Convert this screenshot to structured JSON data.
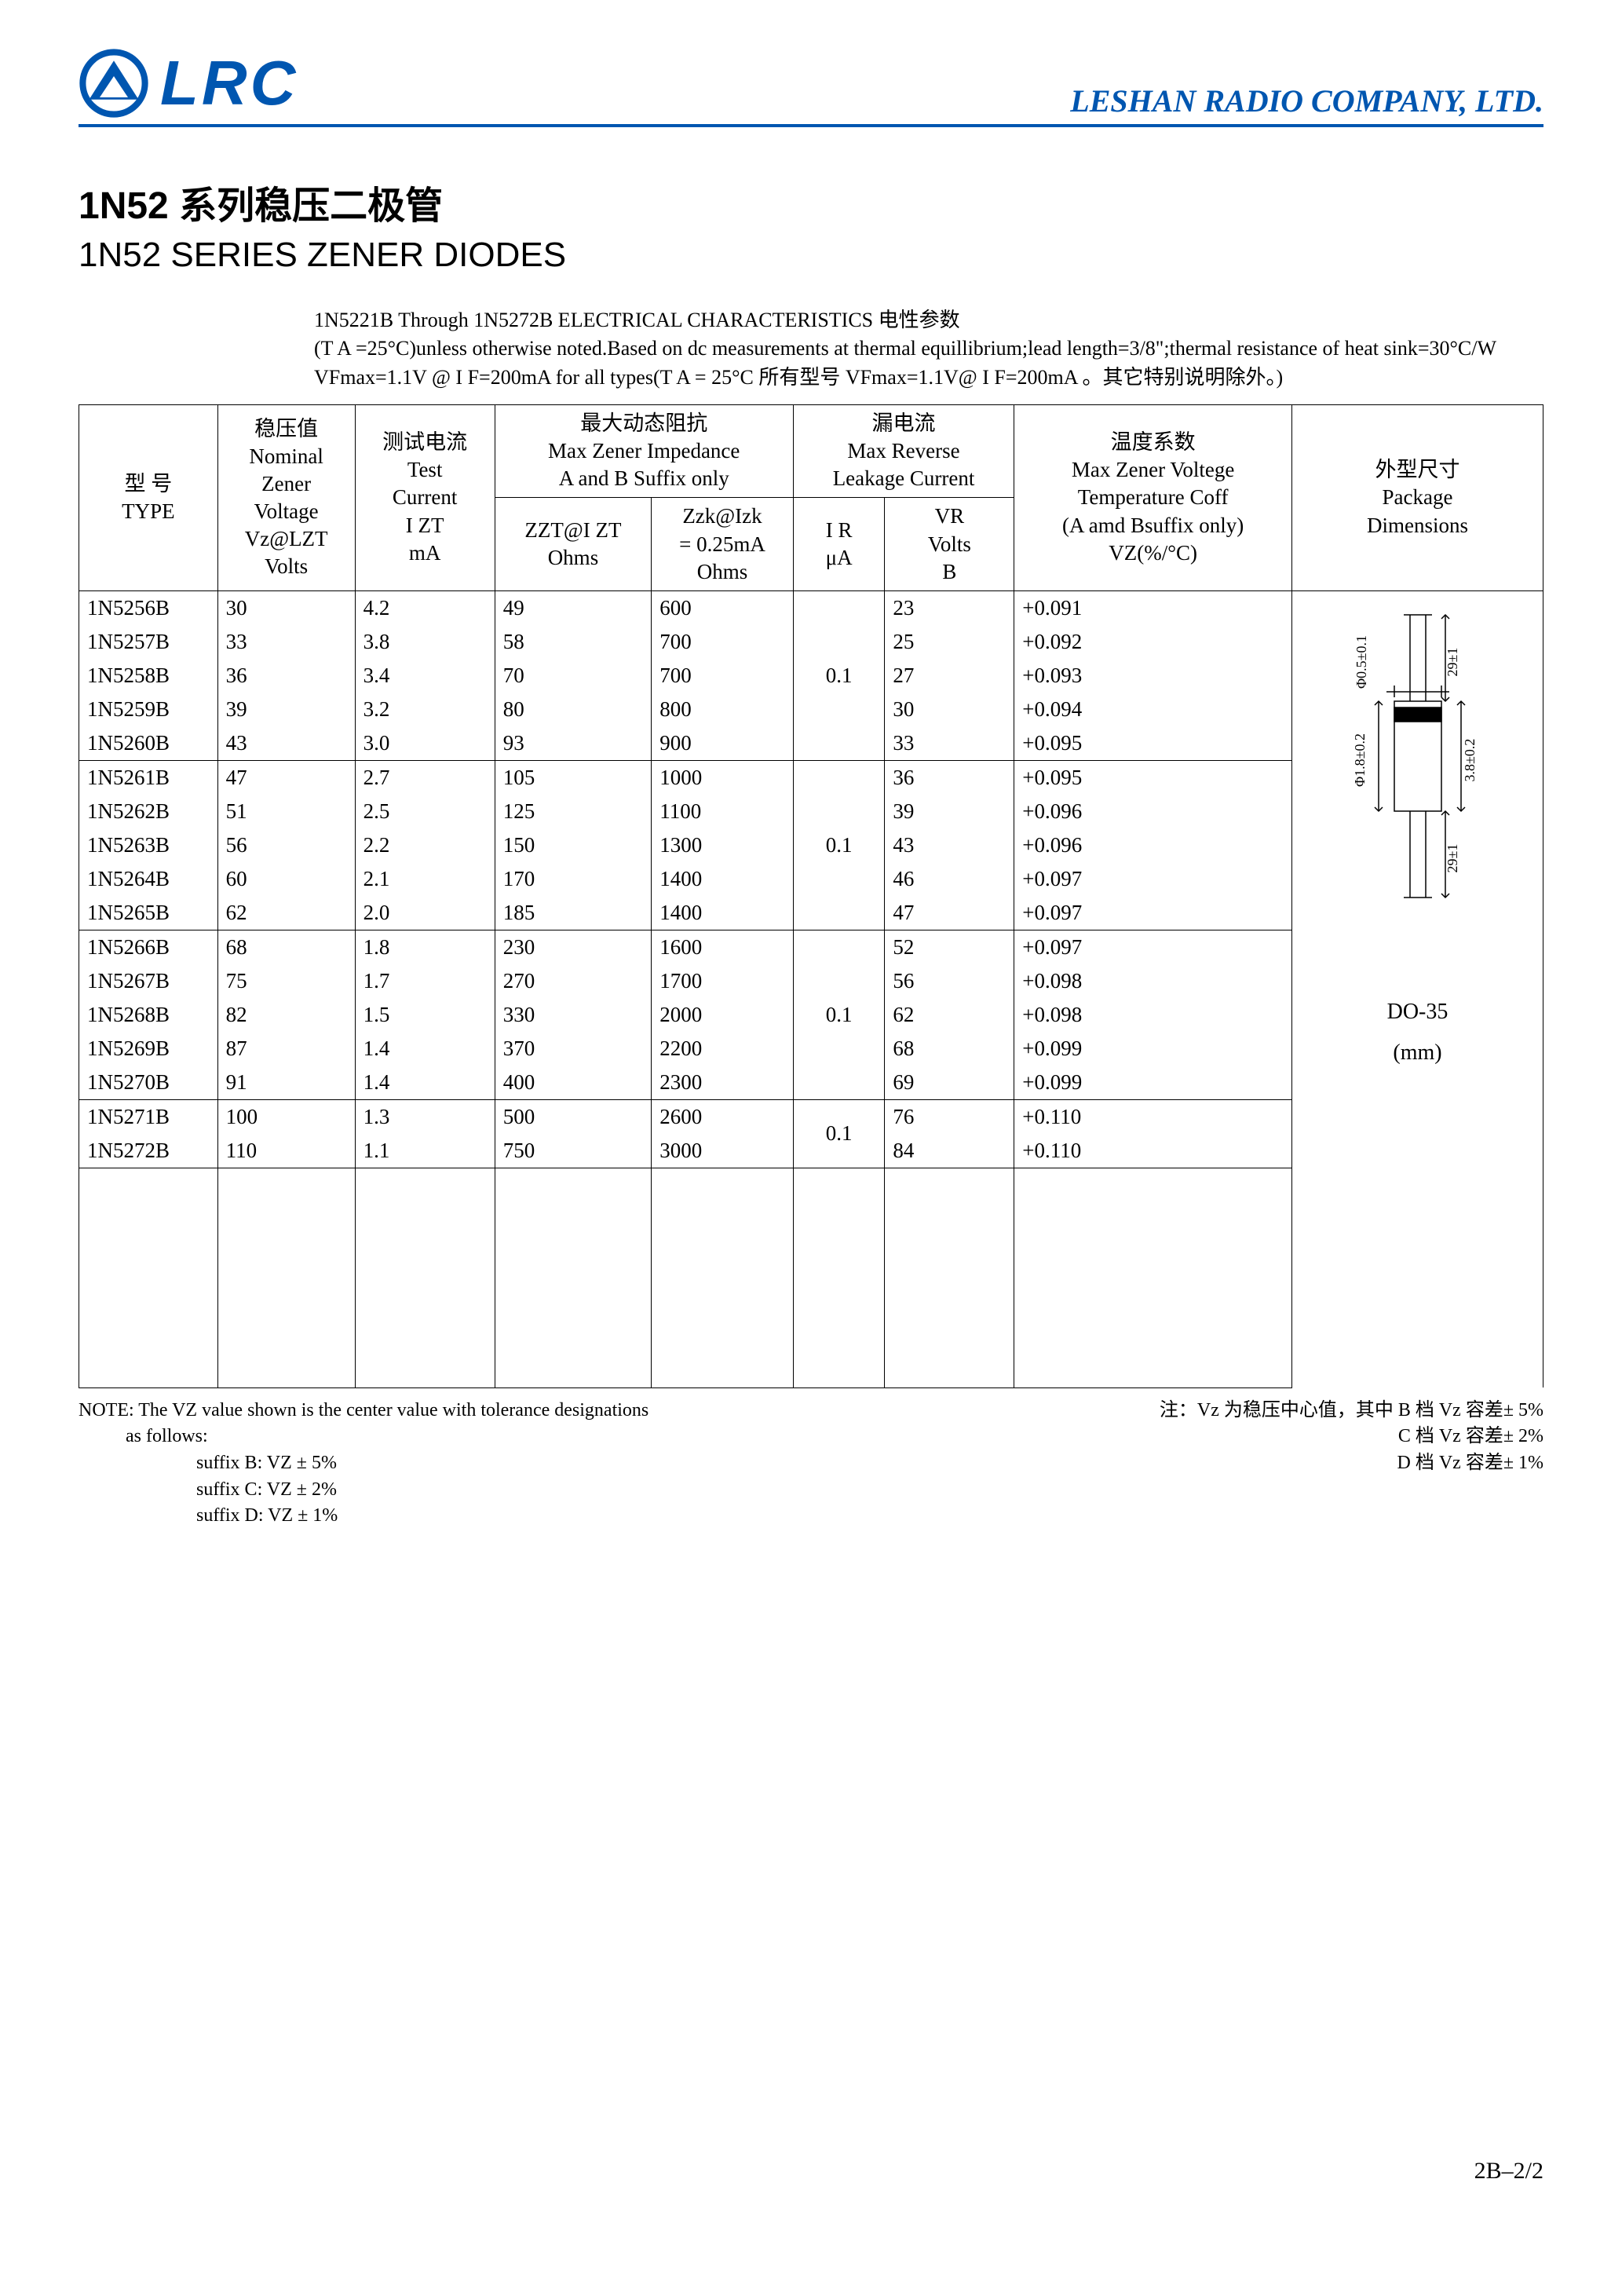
{
  "header": {
    "logo_text": "LRC",
    "company": "LESHAN RADIO COMPANY, LTD."
  },
  "titles": {
    "cn": "1N52 系列稳压二极管",
    "en": "1N52 SERIES ZENER DIODES"
  },
  "subtext_line1": "1N5221B Through 1N5272B ELECTRICAL CHARACTERISTICS 电性参数",
  "subtext_line2": "(T A =25°C)unless otherwise noted.Based on dc measurements at thermal equillibrium;lead length=3/8\";thermal resistance of heat sink=30°C/W  VFmax=1.1V @ I F=200mA for all types(T A = 25°C 所有型号 VFmax=1.1V@ I F=200mA 。其它特别说明除外。)",
  "table": {
    "head": {
      "type_cn": "型  号",
      "type_en": "TYPE",
      "vz_cn": "稳压值",
      "vz_en1": "Nominal",
      "vz_en2": "Zener",
      "vz_en3": "Voltage",
      "vz_sym": "Vz@LZT",
      "vz_unit": "Volts",
      "izt_cn": "测试电流",
      "izt_en1": "Test",
      "izt_en2": "Current",
      "izt_sym": "I ZT",
      "izt_unit": "mA",
      "imp_cn": "最大动态阻抗",
      "imp_en1": "Max Zener Impedance",
      "imp_en2": "A and B Suffix only",
      "zzt_sym": "ZZT@I ZT",
      "zzt_unit": "Ohms",
      "zzk_sym": "Zzk@Izk",
      "zzk_cond": "= 0.25mA",
      "zzk_unit": "Ohms",
      "leak_cn": "漏电流",
      "leak_en1": "Max Reverse",
      "leak_en2": "Leakage Current",
      "ir_sym": "I R",
      "ir_unit": "μA",
      "vr_sym": "VR",
      "vr_unit1": "Volts",
      "vr_unit2": "B",
      "tc_cn": "温度系数",
      "tc_en1": "Max Zener Voltege",
      "tc_en2": "Temperature Coff",
      "tc_en3": "(A amd Bsuffix only)",
      "tc_sym": "VZ(%/°C)",
      "pkg_cn": "外型尺寸",
      "pkg_en1": "Package",
      "pkg_en2": "Dimensions"
    },
    "package": {
      "name": "DO-35",
      "unit": "(mm)",
      "dim1": "Φ0.5±0.1",
      "dim2": "29±1",
      "dim3": "Φ1.8±0.2",
      "dim4": "3.8±0.2",
      "dim5": "29±1"
    },
    "groups": [
      {
        "ir": "0.1",
        "rows": [
          {
            "type": "1N5256B",
            "vz": "30",
            "izt": "4.2",
            "zzt": "49",
            "zzk": "600",
            "vr": "23",
            "tc": "+0.091"
          },
          {
            "type": "1N5257B",
            "vz": "33",
            "izt": "3.8",
            "zzt": "58",
            "zzk": "700",
            "vr": "25",
            "tc": "+0.092"
          },
          {
            "type": "1N5258B",
            "vz": "36",
            "izt": "3.4",
            "zzt": "70",
            "zzk": "700",
            "vr": "27",
            "tc": "+0.093"
          },
          {
            "type": "1N5259B",
            "vz": "39",
            "izt": "3.2",
            "zzt": "80",
            "zzk": "800",
            "vr": "30",
            "tc": "+0.094"
          },
          {
            "type": "1N5260B",
            "vz": "43",
            "izt": "3.0",
            "zzt": "93",
            "zzk": "900",
            "vr": "33",
            "tc": "+0.095"
          }
        ]
      },
      {
        "ir": "0.1",
        "rows": [
          {
            "type": "1N5261B",
            "vz": "47",
            "izt": "2.7",
            "zzt": "105",
            "zzk": "1000",
            "vr": "36",
            "tc": "+0.095"
          },
          {
            "type": "1N5262B",
            "vz": "51",
            "izt": "2.5",
            "zzt": "125",
            "zzk": "1100",
            "vr": "39",
            "tc": "+0.096"
          },
          {
            "type": "1N5263B",
            "vz": "56",
            "izt": "2.2",
            "zzt": "150",
            "zzk": "1300",
            "vr": "43",
            "tc": "+0.096"
          },
          {
            "type": "1N5264B",
            "vz": "60",
            "izt": "2.1",
            "zzt": "170",
            "zzk": "1400",
            "vr": "46",
            "tc": "+0.097"
          },
          {
            "type": "1N5265B",
            "vz": "62",
            "izt": "2.0",
            "zzt": "185",
            "zzk": "1400",
            "vr": "47",
            "tc": "+0.097"
          }
        ]
      },
      {
        "ir": "0.1",
        "rows": [
          {
            "type": "1N5266B",
            "vz": "68",
            "izt": "1.8",
            "zzt": "230",
            "zzk": "1600",
            "vr": "52",
            "tc": "+0.097"
          },
          {
            "type": "1N5267B",
            "vz": "75",
            "izt": "1.7",
            "zzt": "270",
            "zzk": "1700",
            "vr": "56",
            "tc": "+0.098"
          },
          {
            "type": "1N5268B",
            "vz": "82",
            "izt": "1.5",
            "zzt": "330",
            "zzk": "2000",
            "vr": "62",
            "tc": "+0.098"
          },
          {
            "type": "1N5269B",
            "vz": "87",
            "izt": "1.4",
            "zzt": "370",
            "zzk": "2200",
            "vr": "68",
            "tc": "+0.099"
          },
          {
            "type": "1N5270B",
            "vz": "91",
            "izt": "1.4",
            "zzt": "400",
            "zzk": "2300",
            "vr": "69",
            "tc": "+0.099"
          }
        ]
      },
      {
        "ir": "0.1",
        "rows": [
          {
            "type": "1N5271B",
            "vz": "100",
            "izt": "1.3",
            "zzt": "500",
            "zzk": "2600",
            "vr": "76",
            "tc": "+0.110"
          },
          {
            "type": "1N5272B",
            "vz": "110",
            "izt": "1.1",
            "zzt": "750",
            "zzk": "3000",
            "vr": "84",
            "tc": "+0.110"
          }
        ]
      }
    ]
  },
  "footnotes": {
    "left_line1": "NOTE: The VZ value shown is the center value with tolerance designations",
    "left_line2": "as  follows:",
    "suffixB": "suffix B:  VZ ± 5%",
    "suffixC": "suffix C:  VZ ± 2%",
    "suffixD": "suffix D:  VZ ± 1%",
    "right_line1": "注：Vz 为稳压中心值，其中 B 档 Vz 容差± 5%",
    "right_line2": "C 档 Vz 容差± 2%",
    "right_line3": "D 档 Vz 容差± 1%"
  },
  "page_number": "2B–2/2"
}
